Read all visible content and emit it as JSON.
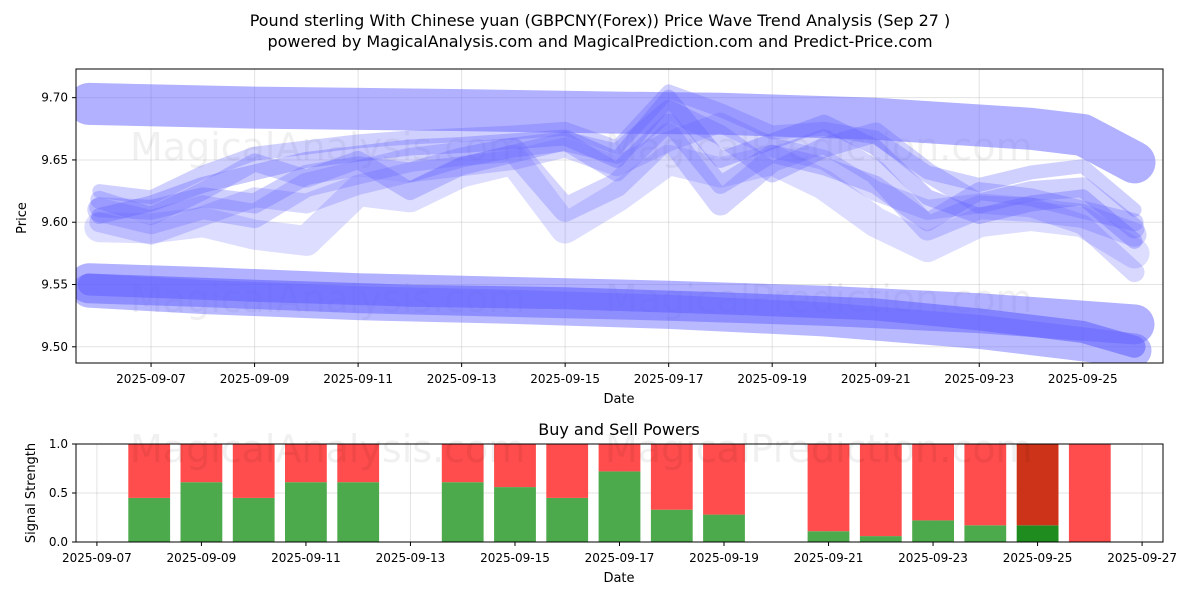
{
  "title_line1": "Pound sterling With Chinese yuan (GBPCNY(Forex)) Price Wave Trend Analysis (Sep 27 )",
  "title_line2": "powered by MagicalAnalysis.com and MagicalPrediction.com and Predict-Price.com",
  "watermarks": [
    "MagicalAnalysis.com",
    "MagicalPrediction.com"
  ],
  "colors": {
    "wave": "#6464ff",
    "buy": "#4caa4c",
    "sell": "#ff4c4c",
    "sell_dark": "#cc3318",
    "buy_dark": "#1e8c1e"
  },
  "chart_data": [
    {
      "type": "line",
      "name": "price-wave-chart",
      "title": "",
      "xlabel": "Date",
      "ylabel": "Price",
      "ylim": [
        9.487,
        9.723
      ],
      "xlim_days": [
        5.55,
        26.55
      ],
      "y_ticks": [
        9.5,
        9.55,
        9.6,
        9.65,
        9.7
      ],
      "y_tick_labels": [
        "9.50",
        "9.55",
        "9.60",
        "9.65",
        "9.70"
      ],
      "x_ticks": [
        7,
        9,
        11,
        13,
        15,
        17,
        19,
        21,
        23,
        25
      ],
      "x_tick_labels": [
        "2025-09-07",
        "2025-09-09",
        "2025-09-11",
        "2025-09-13",
        "2025-09-15",
        "2025-09-17",
        "2025-09-19",
        "2025-09-21",
        "2025-09-23",
        "2025-09-25"
      ],
      "grid": true,
      "series": [
        {
          "name": "upper-band",
          "x": [
            5.8,
            9,
            13,
            16,
            18,
            21,
            24,
            25,
            26
          ],
          "values": [
            9.695,
            9.692,
            9.69,
            9.688,
            9.687,
            9.683,
            9.675,
            9.67,
            9.648
          ],
          "width": 42,
          "opacity": 0.5
        },
        {
          "name": "lower-band-1",
          "x": [
            5.8,
            8,
            11,
            14,
            17,
            20,
            23,
            26
          ],
          "values": [
            9.551,
            9.548,
            9.543,
            9.54,
            9.537,
            9.533,
            9.527,
            9.518
          ],
          "width": 40,
          "opacity": 0.5
        },
        {
          "name": "lower-band-2",
          "x": [
            5.8,
            9,
            12,
            15,
            18,
            21,
            23,
            25,
            26
          ],
          "values": [
            9.55,
            9.545,
            9.541,
            9.539,
            9.535,
            9.53,
            9.522,
            9.512,
            9.5
          ],
          "width": 22,
          "opacity": 0.6
        },
        {
          "name": "lower-band-3",
          "x": [
            5.8,
            8,
            11,
            14,
            17,
            20,
            23,
            26
          ],
          "values": [
            9.545,
            9.54,
            9.535,
            9.532,
            9.528,
            9.522,
            9.512,
            9.497
          ],
          "width": 34,
          "opacity": 0.45
        },
        {
          "name": "wave-a",
          "x": [
            6,
            7,
            8,
            9,
            10,
            11,
            12,
            13,
            14,
            15,
            16,
            17,
            18,
            19,
            20,
            21,
            22,
            23,
            24,
            25,
            26
          ],
          "values": [
            9.612,
            9.61,
            9.62,
            9.615,
            9.638,
            9.645,
            9.64,
            9.652,
            9.66,
            9.665,
            9.655,
            9.69,
            9.67,
            9.64,
            9.66,
            9.672,
            9.64,
            9.615,
            9.625,
            9.628,
            9.595
          ],
          "width": 20,
          "opacity": 0.3
        },
        {
          "name": "wave-b",
          "x": [
            6,
            7,
            8,
            9,
            10,
            11,
            12,
            13,
            14,
            15,
            16,
            17,
            18,
            19,
            20,
            21,
            22,
            23,
            24,
            25,
            26
          ],
          "values": [
            9.605,
            9.615,
            9.63,
            9.64,
            9.65,
            9.655,
            9.66,
            9.662,
            9.665,
            9.668,
            9.65,
            9.7,
            9.65,
            9.665,
            9.68,
            9.66,
            9.62,
            9.605,
            9.615,
            9.62,
            9.585
          ],
          "width": 16,
          "opacity": 0.35
        },
        {
          "name": "wave-c",
          "x": [
            6,
            7,
            8,
            9,
            10,
            11,
            12,
            13,
            14,
            15,
            16,
            17,
            18,
            19,
            20,
            21,
            22,
            23,
            24,
            25,
            26
          ],
          "values": [
            9.618,
            9.605,
            9.625,
            9.648,
            9.635,
            9.65,
            9.625,
            9.645,
            9.655,
            9.665,
            9.64,
            9.68,
            9.63,
            9.655,
            9.645,
            9.63,
            9.6,
            9.625,
            9.62,
            9.61,
            9.6
          ],
          "width": 18,
          "opacity": 0.3
        },
        {
          "name": "wave-d",
          "x": [
            6,
            7,
            8,
            9,
            10,
            11,
            12,
            13,
            14,
            15,
            16,
            17,
            18,
            19,
            20,
            21,
            22,
            23,
            24,
            25,
            26
          ],
          "values": [
            9.61,
            9.6,
            9.612,
            9.605,
            9.63,
            9.64,
            9.65,
            9.655,
            9.658,
            9.61,
            9.63,
            9.67,
            9.615,
            9.65,
            9.665,
            9.64,
            9.595,
            9.612,
            9.61,
            9.605,
            9.59
          ],
          "width": 24,
          "opacity": 0.28
        },
        {
          "name": "wave-e",
          "x": [
            6,
            7,
            8,
            9,
            10,
            11,
            12,
            13,
            14,
            15,
            16,
            17,
            18,
            19,
            20,
            21,
            22,
            23,
            24,
            25,
            26
          ],
          "values": [
            9.596,
            9.595,
            9.6,
            9.59,
            9.585,
            9.625,
            9.62,
            9.64,
            9.65,
            9.595,
            9.62,
            9.65,
            9.64,
            9.65,
            9.63,
            9.6,
            9.58,
            9.6,
            9.605,
            9.6,
            9.575
          ],
          "width": 30,
          "opacity": 0.22
        },
        {
          "name": "wave-f",
          "x": [
            6,
            7,
            8,
            9,
            10,
            11,
            12,
            13,
            14,
            15,
            16,
            17,
            18,
            19,
            20,
            21,
            22,
            23,
            24,
            25,
            26
          ],
          "values": [
            9.625,
            9.62,
            9.64,
            9.655,
            9.66,
            9.665,
            9.668,
            9.67,
            9.672,
            9.675,
            9.66,
            9.705,
            9.69,
            9.672,
            9.675,
            9.668,
            9.64,
            9.63,
            9.64,
            9.645,
            9.61
          ],
          "width": 14,
          "opacity": 0.3
        },
        {
          "name": "wave-g",
          "x": [
            6,
            7,
            8,
            9,
            10,
            11,
            12,
            13,
            14,
            15,
            16,
            17,
            18,
            19,
            20,
            21,
            22,
            23,
            24,
            25,
            26
          ],
          "values": [
            9.6,
            9.59,
            9.605,
            9.62,
            9.615,
            9.63,
            9.64,
            9.645,
            9.65,
            9.66,
            9.645,
            9.665,
            9.68,
            9.66,
            9.65,
            9.625,
            9.61,
            9.615,
            9.612,
            9.598,
            9.56
          ],
          "width": 20,
          "opacity": 0.25
        }
      ]
    },
    {
      "type": "bar",
      "name": "buy-sell-powers-chart",
      "title": "Buy and Sell Powers",
      "xlabel": "Date",
      "ylabel": "Signal Strength",
      "ylim": [
        0,
        1.0
      ],
      "xlim_days": [
        6.6,
        27.4
      ],
      "y_ticks": [
        0.0,
        0.5,
        1.0
      ],
      "y_tick_labels": [
        "0.0",
        "0.5",
        "1.0"
      ],
      "x_ticks": [
        7,
        9,
        11,
        13,
        15,
        17,
        19,
        21,
        23,
        25,
        27
      ],
      "x_tick_labels": [
        "2025-09-07",
        "2025-09-09",
        "2025-09-11",
        "2025-09-13",
        "2025-09-15",
        "2025-09-17",
        "2025-09-19",
        "2025-09-21",
        "2025-09-23",
        "2025-09-25",
        "2025-09-27"
      ],
      "grid": true,
      "categories": [
        "2025-09-08",
        "2025-09-09",
        "2025-09-10",
        "2025-09-11",
        "2025-09-12",
        "2025-09-14",
        "2025-09-15",
        "2025-09-16",
        "2025-09-17",
        "2025-09-18",
        "2025-09-19",
        "2025-09-21",
        "2025-09-22",
        "2025-09-23",
        "2025-09-24",
        "2025-09-25",
        "2025-09-26"
      ],
      "x_days": [
        8,
        9,
        10,
        11,
        12,
        14,
        15,
        16,
        17,
        18,
        19,
        21,
        22,
        23,
        24,
        25,
        26
      ],
      "series": [
        {
          "name": "Buy",
          "values": [
            0.45,
            0.61,
            0.45,
            0.61,
            0.61,
            0.61,
            0.56,
            0.45,
            0.72,
            0.33,
            0.28,
            0.11,
            0.06,
            0.22,
            0.17,
            0.17,
            0.0
          ]
        },
        {
          "name": "Sell",
          "values": [
            0.55,
            0.39,
            0.55,
            0.39,
            0.39,
            0.39,
            0.44,
            0.55,
            0.28,
            0.67,
            0.72,
            0.89,
            0.94,
            0.78,
            0.83,
            0.83,
            1.0
          ]
        }
      ],
      "highlight_index": 15
    }
  ]
}
